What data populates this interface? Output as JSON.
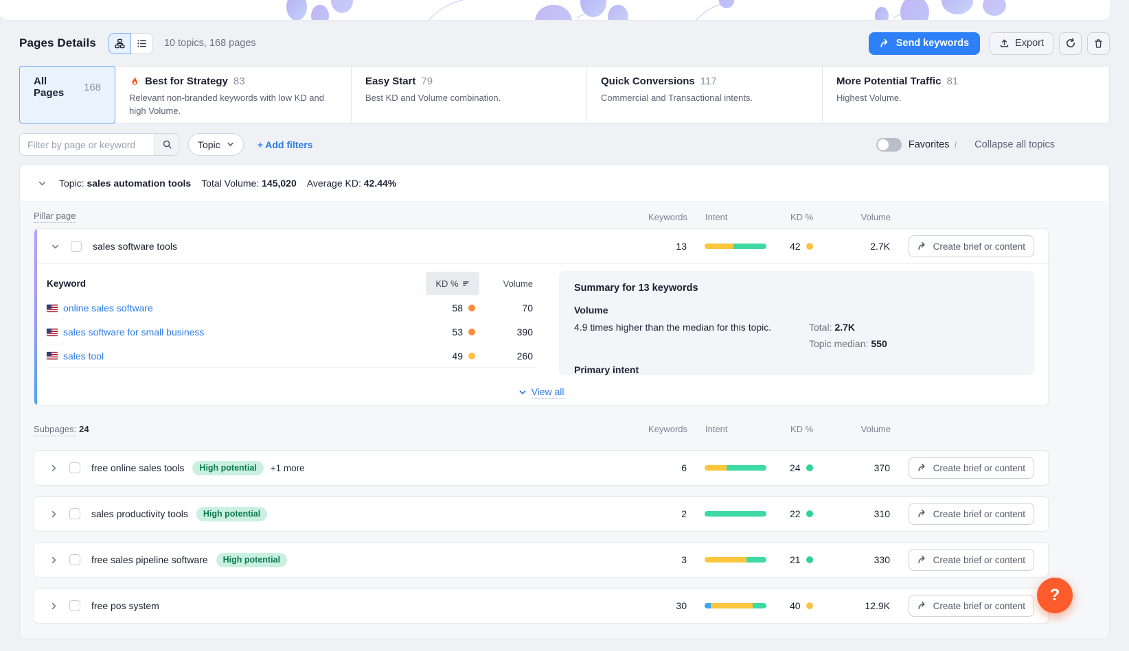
{
  "header": {
    "title": "Pages Details",
    "summary": "10 topics, 168 pages",
    "send_keywords_label": "Send keywords",
    "export_label": "Export"
  },
  "tabs": [
    {
      "label": "All Pages",
      "count": "168",
      "description": ""
    },
    {
      "label": "Best for Strategy",
      "count": "83",
      "description": "Relevant non-branded keywords with low KD and high Volume."
    },
    {
      "label": "Easy Start",
      "count": "79",
      "description": "Best KD and Volume combination."
    },
    {
      "label": "Quick Conversions",
      "count": "117",
      "description": "Commercial and Transactional intents."
    },
    {
      "label": "More Potential Traffic",
      "count": "81",
      "description": "Highest Volume."
    }
  ],
  "filters": {
    "search_placeholder": "Filter by page or keyword",
    "topic_dropdown_label": "Topic",
    "add_filters_label": "+ Add filters",
    "favorites_label": "Favorites",
    "info_glyph": "i",
    "collapse_label": "Collapse all topics"
  },
  "topic": {
    "label": "Topic:",
    "name": "sales automation tools",
    "total_volume_label": "Total Volume:",
    "total_volume": "145,020",
    "avg_kd_label": "Average KD:",
    "avg_kd": "42.44%"
  },
  "columns": {
    "keywords": "Keywords",
    "intent": "Intent",
    "kd": "KD %",
    "volume": "Volume"
  },
  "create_label": "Create brief or content",
  "pillar": {
    "section_label": "Pillar page",
    "row": {
      "title": "sales software tools",
      "keywords": "13",
      "kd": "42",
      "kd_level": "yellow",
      "volume": "2.7K",
      "intent_segments": [
        {
          "color": "yellow",
          "pct": 47
        },
        {
          "color": "green",
          "pct": 53
        }
      ]
    },
    "keyword_table": {
      "keyword_header": "Keyword",
      "kd_header": "KD %",
      "volume_header": "Volume",
      "rows": [
        {
          "keyword": "online sales software",
          "kd": "58",
          "kd_level": "orange",
          "volume": "70"
        },
        {
          "keyword": "sales software for small business",
          "kd": "53",
          "kd_level": "orange",
          "volume": "390"
        },
        {
          "keyword": "sales tool",
          "kd": "49",
          "kd_level": "yellow",
          "volume": "260"
        }
      ]
    },
    "summary": {
      "title": "Summary for 13 keywords",
      "volume_label": "Volume",
      "volume_text": "4.9 times higher than the median for this topic.",
      "total_label": "Total:",
      "total_value": "2.7K",
      "median_label": "Topic median:",
      "median_value": "550",
      "primary_intent_label": "Primary intent"
    },
    "view_all_label": "View all"
  },
  "subpages": {
    "section_label": "Subpages:",
    "count": "24",
    "rows": [
      {
        "title": "free online sales tools",
        "badge": "High potential",
        "more": "+1 more",
        "keywords": "6",
        "kd": "24",
        "kd_level": "green",
        "volume": "370",
        "intent_segments": [
          {
            "color": "yellow",
            "pct": 35
          },
          {
            "color": "green",
            "pct": 65
          }
        ]
      },
      {
        "title": "sales productivity tools",
        "badge": "High potential",
        "keywords": "2",
        "kd": "22",
        "kd_level": "green",
        "volume": "310",
        "intent_segments": [
          {
            "color": "green",
            "pct": 100
          }
        ]
      },
      {
        "title": "free sales pipeline software",
        "badge": "High potential",
        "keywords": "3",
        "kd": "21",
        "kd_level": "green",
        "volume": "330",
        "intent_segments": [
          {
            "color": "yellow",
            "pct": 68
          },
          {
            "color": "green",
            "pct": 32
          }
        ]
      },
      {
        "title": "free pos system",
        "keywords": "30",
        "kd": "40",
        "kd_level": "yellow",
        "volume": "12.9K",
        "intent_segments": [
          {
            "color": "blue",
            "pct": 10
          },
          {
            "color": "yellow",
            "pct": 68
          },
          {
            "color": "green",
            "pct": 22
          }
        ]
      }
    ]
  },
  "help_label": "?",
  "colors": {
    "intent_yellow": "#fcc63d",
    "intent_green": "#3fd9a4",
    "intent_blue": "#3aa7f5",
    "kd_green": "#2ed396",
    "kd_yellow": "#ffc043",
    "kd_orange": "#ff8a3c",
    "badge_bg": "#c9f0e0",
    "badge_text": "#0e7a52"
  }
}
